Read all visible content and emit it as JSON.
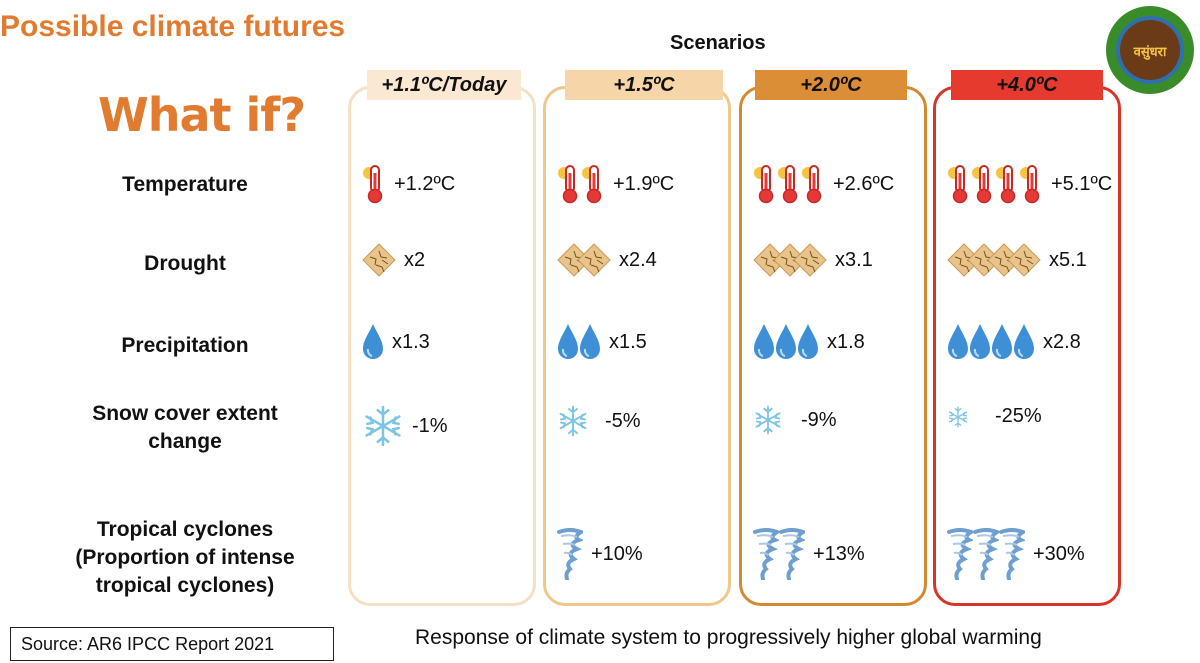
{
  "title": "Possible climate futures",
  "subtitle": "What if?",
  "scenarios_label": "Scenarios",
  "rows": [
    {
      "label": "Temperature"
    },
    {
      "label": "Drought"
    },
    {
      "label": "Precipitation"
    },
    {
      "label": "Snow cover extent change"
    },
    {
      "label": "Tropical cyclones (Proportion of intense tropical cyclones)"
    }
  ],
  "scenarios": [
    {
      "label": "+1.1ºC/Today",
      "color": "#fbe8d3",
      "border": "#f6e0c5",
      "temperature": "+1.2ºC",
      "drought": "x2",
      "precipitation": "x1.3",
      "snow": "-1%",
      "cyclones": "",
      "temp_icons": 1,
      "drought_icons": 1,
      "drop_icons": 1,
      "cyclone_icons": 0
    },
    {
      "label": "+1.5ºC",
      "color": "#f6d6a8",
      "border": "#f0c98a",
      "temperature": "+1.9ºC",
      "drought": "x2.4",
      "precipitation": "x1.5",
      "snow": "-5%",
      "cyclones": "+10%",
      "temp_icons": 2,
      "drought_icons": 2,
      "drop_icons": 2,
      "cyclone_icons": 1
    },
    {
      "label": "+2.0ºC",
      "color": "#dc8e36",
      "border": "#d28a30",
      "temperature": "+2.6ºC",
      "drought": "x3.1",
      "precipitation": "x1.8",
      "snow": "-9%",
      "cyclones": "+13%",
      "temp_icons": 3,
      "drought_icons": 3,
      "drop_icons": 3,
      "cyclone_icons": 2
    },
    {
      "label": "+4.0ºC",
      "color": "#e63a2e",
      "border": "#d9342a",
      "temperature": "+5.1ºC",
      "drought": "x5.1",
      "precipitation": "x2.8",
      "snow": "-25%",
      "cyclones": "+30%",
      "temp_icons": 4,
      "drought_icons": 4,
      "drop_icons": 4,
      "cyclone_icons": 3
    }
  ],
  "logo_text": "माझी वसुंधरा",
  "source": "Source: AR6 IPCC Report 2021",
  "caption": "Response of climate system to progressively higher global warming"
}
